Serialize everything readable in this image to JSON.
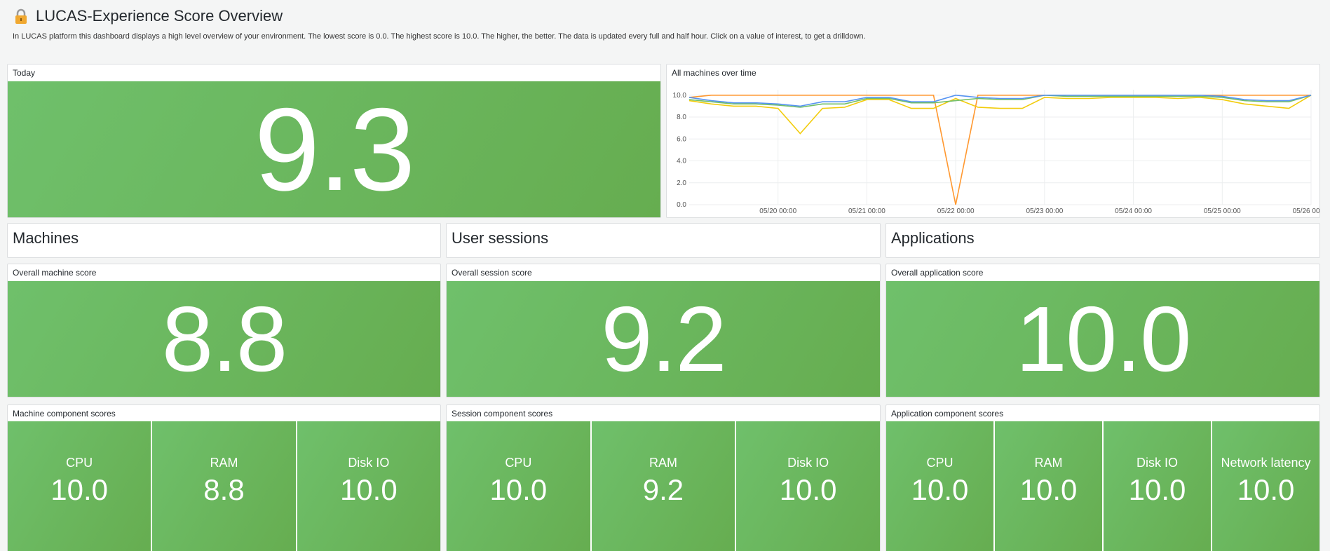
{
  "header": {
    "title": "LUCAS-Experience Score Overview",
    "description": "In LUCAS platform this dashboard displays a high level overview of your environment. The lowest score is 0.0. The highest score is 10.0. The higher, the better. The data is updated every full and half hour. Click on a value of interest, to get a drilldown."
  },
  "today": {
    "title": "Today",
    "score": "9.3"
  },
  "chart_data": {
    "type": "line",
    "title": "All machines over time",
    "x": [
      "05/19 00:00",
      "05/19 06:00",
      "05/19 12:00",
      "05/19 18:00",
      "05/20 00:00",
      "05/20 06:00",
      "05/20 12:00",
      "05/20 18:00",
      "05/21 00:00",
      "05/21 06:00",
      "05/21 12:00",
      "05/21 18:00",
      "05/22 00:00",
      "05/22 06:00",
      "05/22 12:00",
      "05/22 18:00",
      "05/23 00:00",
      "05/23 06:00",
      "05/23 12:00",
      "05/23 18:00",
      "05/24 00:00",
      "05/24 06:00",
      "05/24 12:00",
      "05/24 18:00",
      "05/25 00:00",
      "05/25 06:00",
      "05/25 12:00",
      "05/25 18:00",
      "05/26 00:00"
    ],
    "series": [
      {
        "color": "#ff9830",
        "values": [
          9.8,
          10,
          10,
          10,
          10,
          10,
          10,
          10,
          10,
          10,
          10,
          10,
          0,
          10,
          10,
          10,
          10,
          10,
          10,
          10,
          10,
          10,
          10,
          10,
          10,
          10,
          10,
          10,
          10
        ]
      },
      {
        "color": "#f2cc0c",
        "values": [
          9.5,
          9.2,
          9.0,
          9.0,
          8.8,
          6.5,
          8.8,
          8.9,
          9.6,
          9.6,
          8.8,
          8.8,
          9.7,
          8.9,
          8.8,
          8.8,
          9.8,
          9.7,
          9.7,
          9.8,
          9.8,
          9.8,
          9.7,
          9.8,
          9.6,
          9.2,
          9.0,
          8.8,
          10
        ]
      },
      {
        "color": "#73bf69",
        "values": [
          9.6,
          9.4,
          9.2,
          9.2,
          9.1,
          8.9,
          9.2,
          9.2,
          9.7,
          9.7,
          9.3,
          9.3,
          9.5,
          9.7,
          9.6,
          9.6,
          10,
          9.9,
          9.9,
          9.9,
          9.9,
          9.9,
          9.9,
          9.9,
          9.8,
          9.5,
          9.4,
          9.4,
          10
        ]
      },
      {
        "color": "#5794f2",
        "values": [
          9.8,
          9.5,
          9.3,
          9.3,
          9.2,
          9.0,
          9.4,
          9.4,
          9.8,
          9.8,
          9.4,
          9.4,
          10,
          9.8,
          9.7,
          9.7,
          10,
          10,
          10,
          10,
          10,
          10,
          10,
          10,
          9.9,
          9.6,
          9.5,
          9.5,
          10
        ]
      }
    ],
    "xlim": [
      "05/19 00:00",
      "05/26 00:00"
    ],
    "xticks": [
      "05/20 00:00",
      "05/21 00:00",
      "05/22 00:00",
      "05/23 00:00",
      "05/24 00:00",
      "05/25 00:00",
      "05/26 00:00"
    ],
    "ylim": [
      0,
      10.5
    ],
    "yticks": [
      {
        "value": 0,
        "label": "0.0"
      },
      {
        "value": 2,
        "label": "2.0"
      },
      {
        "value": 4,
        "label": "4.0"
      },
      {
        "value": 6,
        "label": "6.0"
      },
      {
        "value": 8,
        "label": "8.0"
      },
      {
        "value": 10,
        "label": "10.0"
      }
    ],
    "grid": true
  },
  "sections": [
    {
      "title": "Machines",
      "score_title": "Overall machine score",
      "score": "8.8",
      "components_title": "Machine component scores",
      "components": [
        {
          "label": "CPU",
          "value": "10.0"
        },
        {
          "label": "RAM",
          "value": "8.8"
        },
        {
          "label": "Disk IO",
          "value": "10.0"
        }
      ]
    },
    {
      "title": "User sessions",
      "score_title": "Overall session score",
      "score": "9.2",
      "components_title": "Session component scores",
      "components": [
        {
          "label": "CPU",
          "value": "10.0"
        },
        {
          "label": "RAM",
          "value": "9.2"
        },
        {
          "label": "Disk IO",
          "value": "10.0"
        }
      ]
    },
    {
      "title": "Applications",
      "score_title": "Overall application score",
      "score": "10.0",
      "components_title": "Application component scores",
      "components": [
        {
          "label": "CPU",
          "value": "10.0"
        },
        {
          "label": "RAM",
          "value": "10.0"
        },
        {
          "label": "Disk IO",
          "value": "10.0"
        },
        {
          "label": "Network latency",
          "value": "10.0"
        }
      ]
    }
  ]
}
